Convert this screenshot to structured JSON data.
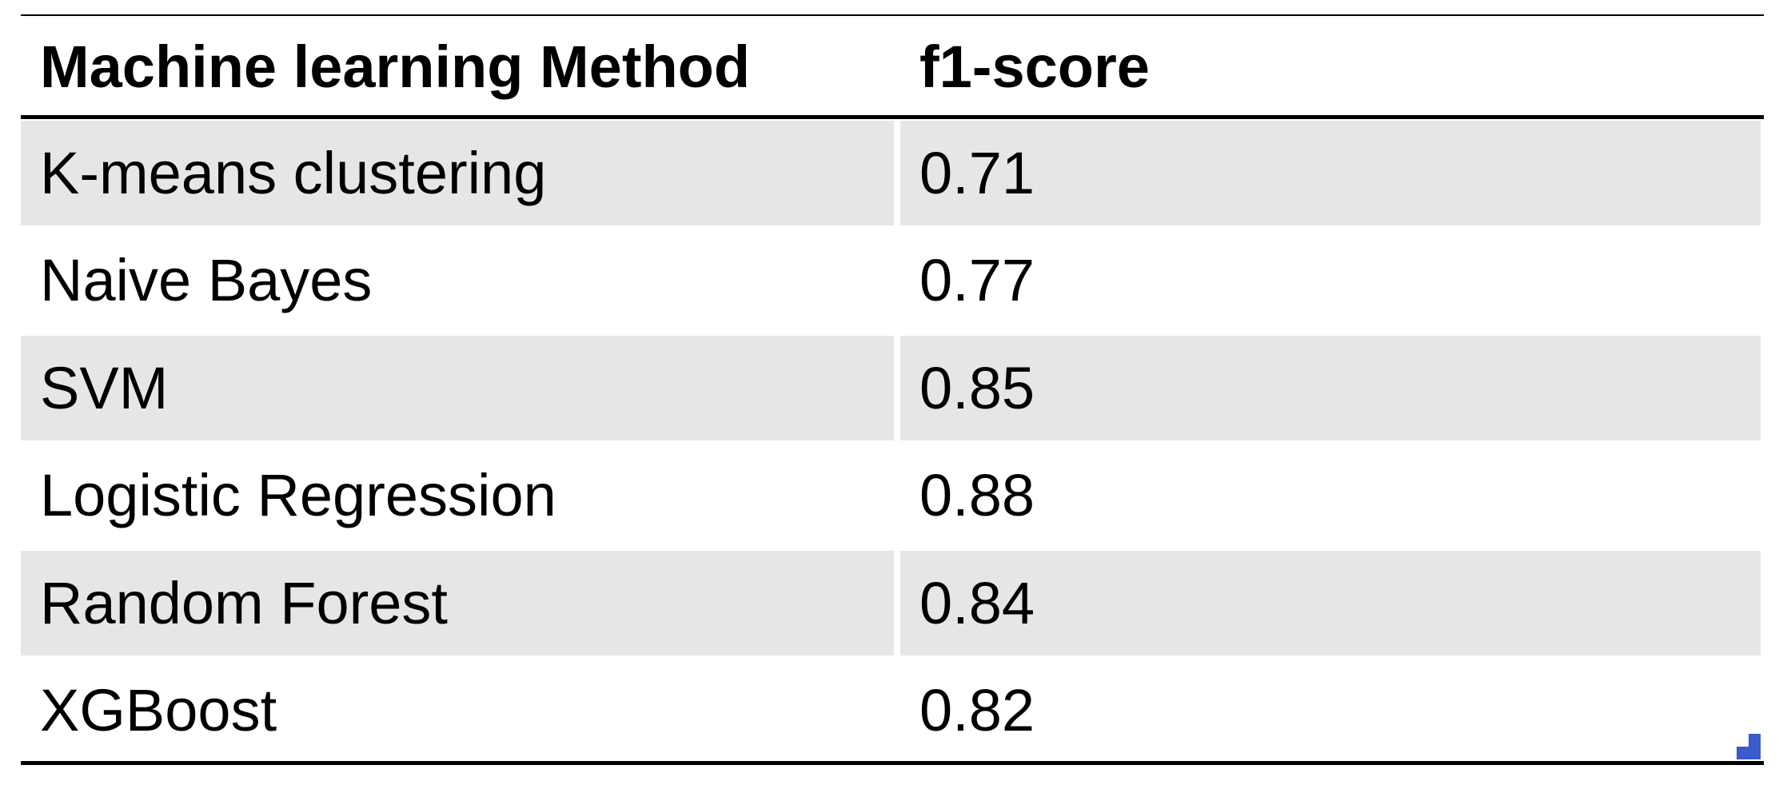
{
  "table": {
    "header": [
      "Machine learning Method",
      "f1-score"
    ],
    "rows": [
      [
        "K-means clustering",
        0.71
      ],
      [
        "Naive Bayes",
        0.77
      ],
      [
        "SVM",
        0.85
      ],
      [
        "Logistic Regression",
        0.88
      ],
      [
        "Random Forest",
        0.84
      ],
      [
        "XGBoost",
        0.82
      ]
    ]
  }
}
